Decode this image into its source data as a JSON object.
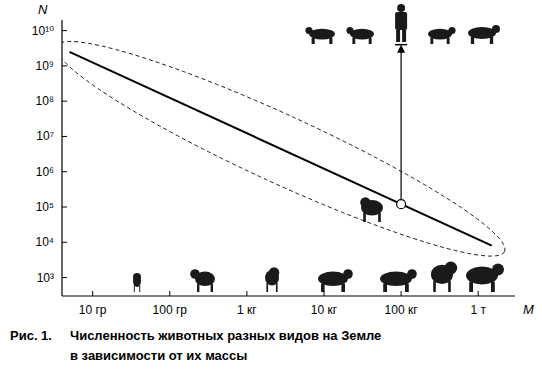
{
  "chart_data": {
    "type": "line",
    "log": true,
    "grid": false,
    "x_label": "M",
    "y_label": "N",
    "xlim": [
      0.004,
      3000
    ],
    "ylim": [
      300,
      20000000000
    ],
    "xticks": [
      {
        "value": 0.01,
        "label": "10 гр"
      },
      {
        "value": 0.1,
        "label": "100 гр"
      },
      {
        "value": 1,
        "label": "1 кг"
      },
      {
        "value": 10,
        "label": "10 кг"
      },
      {
        "value": 100,
        "label": "100 кг"
      },
      {
        "value": 1000,
        "label": "1 т"
      }
    ],
    "yticks": [
      {
        "value": 1000,
        "label": "10³"
      },
      {
        "value": 10000,
        "label": "10⁴"
      },
      {
        "value": 100000,
        "label": "10⁵"
      },
      {
        "value": 1000000,
        "label": "10⁶"
      },
      {
        "value": 10000000,
        "label": "10⁷"
      },
      {
        "value": 100000000,
        "label": "10⁸"
      },
      {
        "value": 1000000000,
        "label": "10⁹"
      },
      {
        "value": 10000000000,
        "label": "10¹⁰"
      }
    ],
    "x": [
      0.005,
      1500
    ],
    "values": [
      2500000000,
      8000
    ],
    "color": "#000000",
    "highlight": {
      "x": 100,
      "value": 120000,
      "to": 4000000000,
      "marker": "circle"
    },
    "caption": {
      "number": "Рис. 1.",
      "lines": [
        "Численность животных разных видов на Земле",
        "в зависимости от их массы"
      ]
    }
  }
}
